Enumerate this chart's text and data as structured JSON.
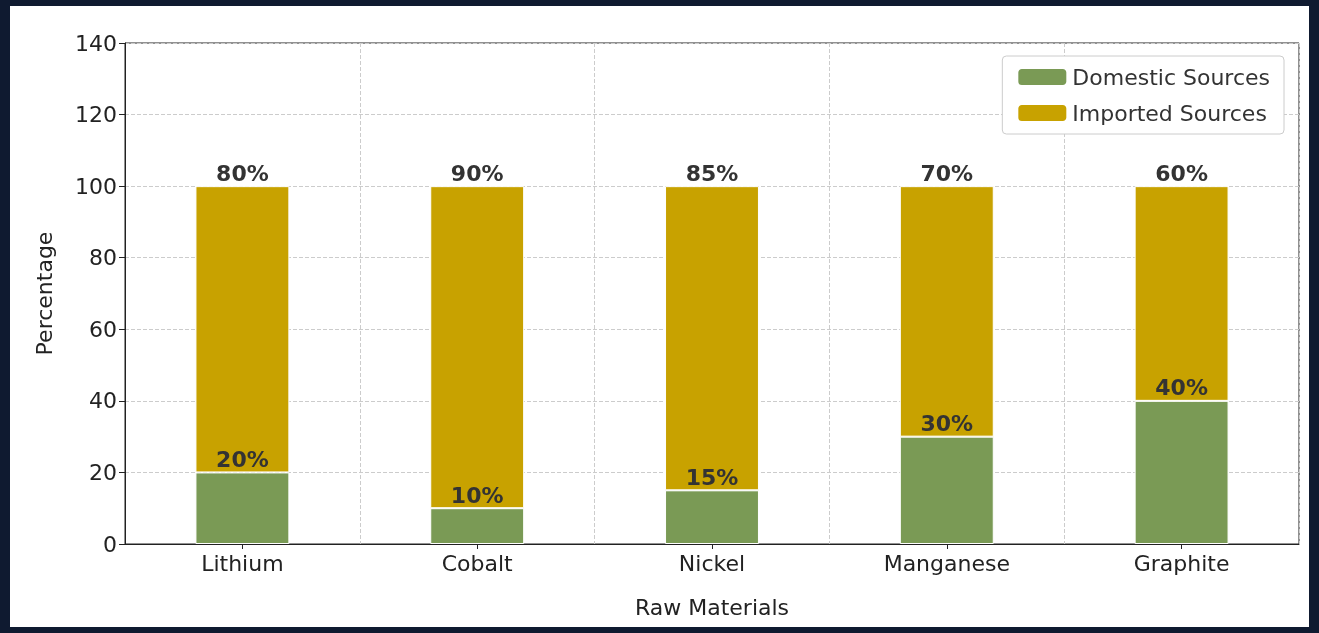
{
  "chart_data": {
    "type": "bar",
    "stacked": true,
    "xlabel": "Raw Materials",
    "ylabel": "Percentage",
    "categories": [
      "Lithium",
      "Cobalt",
      "Nickel",
      "Manganese",
      "Graphite"
    ],
    "series": [
      {
        "name": "Domestic Sources",
        "color": "#7a9a55",
        "values": [
          20,
          10,
          15,
          30,
          40
        ],
        "value_labels": [
          "20%",
          "10%",
          "15%",
          "30%",
          "40%"
        ]
      },
      {
        "name": "Imported Sources",
        "color": "#c8a200",
        "values": [
          80,
          90,
          85,
          70,
          60
        ],
        "value_labels": [
          "80%",
          "90%",
          "85%",
          "70%",
          "60%"
        ]
      }
    ],
    "ylim": [
      0,
      140
    ],
    "yticks": [
      0,
      20,
      40,
      60,
      80,
      100,
      120,
      140
    ],
    "grid": true,
    "legend": "top right"
  }
}
